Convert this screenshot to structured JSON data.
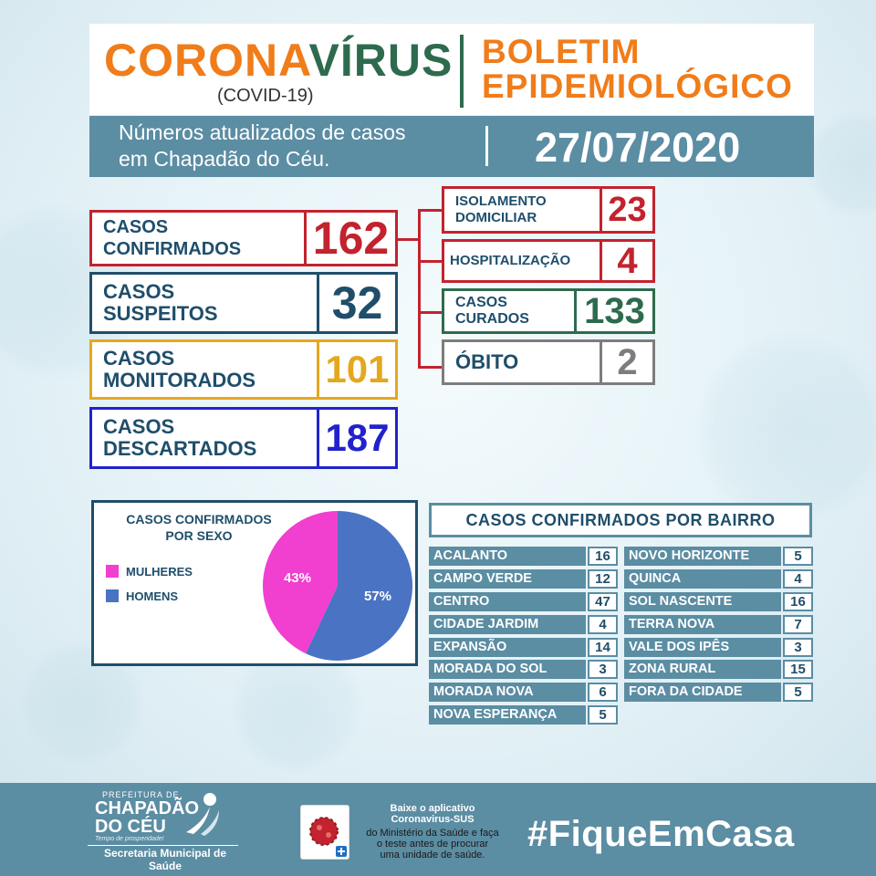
{
  "header": {
    "title_part1": "CORONA",
    "title_part2": "VÍRUS",
    "subtitle": "(COVID-19)",
    "bulletin_line1": "BOLETIM",
    "bulletin_line2": "EPIDEMIOLÓGICO",
    "bar_line1": "Números atualizados de casos",
    "bar_line2": "em Chapadão do Céu.",
    "date": "27/07/2020"
  },
  "colors": {
    "orange": "#f07c1a",
    "green": "#2e6b4e",
    "red": "#c2232e",
    "navy": "#1f4e6b",
    "gold": "#e4a81f",
    "blue": "#2222cc",
    "grey": "#7d7d7d",
    "teal": "#5b8da3",
    "pink": "#f13fd0",
    "pie_blue": "#4a73c4"
  },
  "main_stats": [
    {
      "label_line1": "CASOS",
      "label_line2": "CONFIRMADOS",
      "value": "162",
      "color": "#c2232e"
    },
    {
      "label_line1": "CASOS",
      "label_line2": "SUSPEITOS",
      "value": "32",
      "color": "#1f4e6b"
    },
    {
      "label_line1": "CASOS",
      "label_line2": "MONITORADOS",
      "value": "101",
      "color": "#e4a81f"
    },
    {
      "label_line1": "CASOS",
      "label_line2": "DESCARTADOS",
      "value": "187",
      "color": "#2222cc"
    }
  ],
  "sub_stats": [
    {
      "label_line1": "ISOLAMENTO",
      "label_line2": "DOMICILIAR",
      "value": "23",
      "color": "#c2232e"
    },
    {
      "label_line1": "HOSPITALIZAÇÃO",
      "label_line2": "",
      "value": "4",
      "color": "#c2232e"
    },
    {
      "label_line1": "CASOS",
      "label_line2": "CURADOS",
      "value": "133",
      "color": "#2e6b4e"
    },
    {
      "label_line1": "ÓBITO",
      "label_line2": "",
      "value": "2",
      "color": "#7d7d7d"
    }
  ],
  "sex_chart": {
    "title_line1": "CASOS CONFIRMADOS",
    "title_line2": "POR SEXO",
    "legend": [
      {
        "label": "MULHERES",
        "color": "#f13fd0"
      },
      {
        "label": "HOMENS",
        "color": "#4a73c4"
      }
    ]
  },
  "chart_data": {
    "type": "pie",
    "title": "CASOS CONFIRMADOS POR SEXO",
    "categories": [
      "MULHERES",
      "HOMENS"
    ],
    "values": [
      43,
      57
    ],
    "labels": [
      "43%",
      "57%"
    ],
    "colors": [
      "#f13fd0",
      "#4a73c4"
    ],
    "legend_position": "left"
  },
  "bairros": {
    "title": "CASOS CONFIRMADOS POR BAIRRO",
    "left": [
      {
        "name": "ACALANTO",
        "value": "16"
      },
      {
        "name": "CAMPO VERDE",
        "value": "12"
      },
      {
        "name": "CENTRO",
        "value": "47"
      },
      {
        "name": "CIDADE JARDIM",
        "value": "4"
      },
      {
        "name": "EXPANSÃO",
        "value": "14"
      },
      {
        "name": "MORADA DO SOL",
        "value": "3"
      },
      {
        "name": "MORADA NOVA",
        "value": "6"
      },
      {
        "name": "NOVA ESPERANÇA",
        "value": "5"
      }
    ],
    "right": [
      {
        "name": "NOVO HORIZONTE",
        "value": "5"
      },
      {
        "name": "QUINCA",
        "value": "4"
      },
      {
        "name": "SOL NASCENTE",
        "value": "16"
      },
      {
        "name": "TERRA NOVA",
        "value": "7"
      },
      {
        "name": "VALE DOS IPÊS",
        "value": "3"
      },
      {
        "name": "ZONA RURAL",
        "value": "15"
      },
      {
        "name": "FORA DA CIDADE",
        "value": "5"
      }
    ]
  },
  "footer": {
    "pref_small": "PREFEITURA DE",
    "pref_line1": "CHAPADÃO",
    "pref_line2": "DO CÉU",
    "pref_tag": "Tempo de prosperidade!",
    "sec_line1": "Secretaria Municipal de",
    "sec_line2": "Saúde",
    "app_line1": "Baixe o aplicativo",
    "app_line2": "Coronavirus-SUS",
    "app_line3": "do Ministério da Saúde e faça",
    "app_line4": "o teste antes de procurar",
    "app_line5": "uma unidade de saúde.",
    "hashtag": "#FiqueEmCasa"
  }
}
